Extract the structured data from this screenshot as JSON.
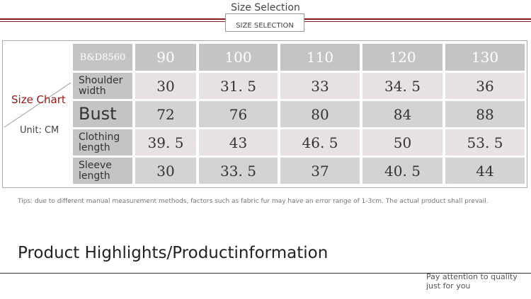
{
  "header": {
    "title": "Size Selection",
    "badge": "SIZE SELECTION"
  },
  "side": {
    "label": "Size Chart",
    "unit": "Unit: CM"
  },
  "table": {
    "corner": "B&D8560",
    "columns": [
      "90",
      "100",
      "110",
      "120",
      "130"
    ],
    "rows": [
      [
        "Shoulder width",
        "30",
        "31. 5",
        "33",
        "34. 5",
        "36"
      ],
      [
        "Bust",
        "72",
        "76",
        "80",
        "84",
        "88"
      ],
      [
        "Clothing length",
        "39. 5",
        "43",
        "46. 5",
        "50",
        "53. 5"
      ],
      [
        "Sleeve length",
        "30",
        "33. 5",
        "37",
        "40. 5",
        "44"
      ]
    ]
  },
  "tips": "Tips: due to different manual measurement methods, factors such as fabric fur may have an error range of 1-3cm. The actual product shall prevail.",
  "section": {
    "title": "Product Highlights/Productinformation",
    "note": "Pay attention to quality just for you"
  }
}
